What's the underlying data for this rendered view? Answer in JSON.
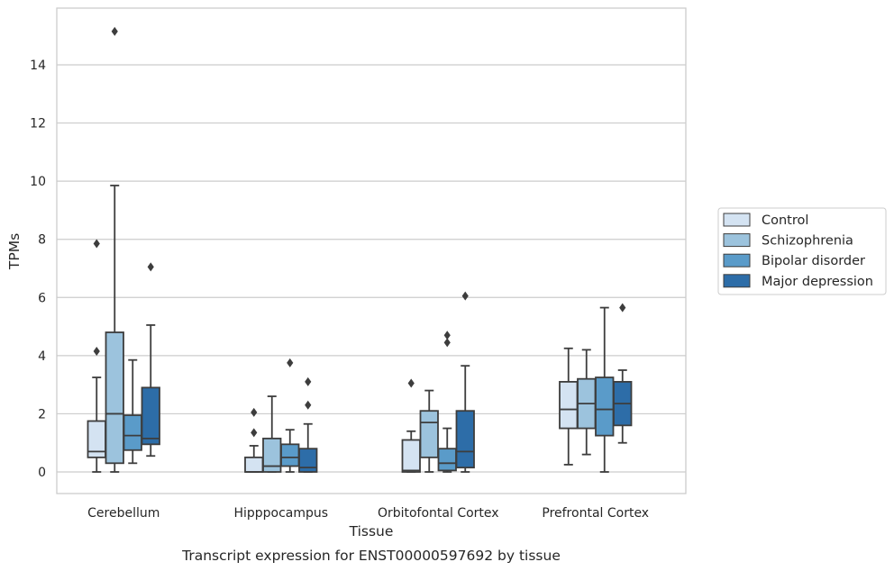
{
  "chart_data": {
    "type": "box",
    "title": "",
    "caption": "Transcript expression for ENST00000597692 by tissue",
    "xlabel": "Tissue",
    "ylabel": "TPMs",
    "ylim": [
      -0.75,
      15.7
    ],
    "yticks": [
      0,
      2,
      4,
      6,
      8,
      10,
      12,
      14
    ],
    "grid": "horizontal",
    "legend_position": "right",
    "categories": [
      "Cerebellum",
      "Hipppocampus",
      "Orbitofontal Cortex",
      "Prefrontal Cortex"
    ],
    "series": [
      {
        "name": "Control",
        "color": "#d4e3f2",
        "boxes": [
          {
            "whislo": 0.0,
            "q1": 0.5,
            "med": 0.7,
            "q3": 1.75,
            "whishi": 3.25,
            "fliers": [
              4.15,
              7.85
            ]
          },
          {
            "whislo": 0.0,
            "q1": 0.0,
            "med": 0.0,
            "q3": 0.5,
            "whishi": 0.9,
            "fliers": [
              1.35,
              2.05
            ]
          },
          {
            "whislo": 0.0,
            "q1": 0.0,
            "med": 0.05,
            "q3": 1.1,
            "whishi": 1.4,
            "fliers": [
              3.05
            ]
          },
          {
            "whislo": 0.25,
            "q1": 1.5,
            "med": 2.15,
            "q3": 3.1,
            "whishi": 4.25,
            "fliers": []
          }
        ]
      },
      {
        "name": "Schizophrenia",
        "color": "#9cc3dd",
        "boxes": [
          {
            "whislo": 0.0,
            "q1": 0.3,
            "med": 2.0,
            "q3": 4.8,
            "whishi": 9.85,
            "fliers": [
              15.15
            ]
          },
          {
            "whislo": 0.0,
            "q1": 0.0,
            "med": 0.2,
            "q3": 1.15,
            "whishi": 2.6,
            "fliers": []
          },
          {
            "whislo": 0.0,
            "q1": 0.5,
            "med": 1.7,
            "q3": 2.1,
            "whishi": 2.8,
            "fliers": []
          },
          {
            "whislo": 0.6,
            "q1": 1.5,
            "med": 2.35,
            "q3": 3.2,
            "whishi": 4.2,
            "fliers": []
          }
        ]
      },
      {
        "name": "Bipolar disorder",
        "color": "#5a9bc9",
        "boxes": [
          {
            "whislo": 0.3,
            "q1": 0.75,
            "med": 1.25,
            "q3": 1.95,
            "whishi": 3.85,
            "fliers": []
          },
          {
            "whislo": 0.0,
            "q1": 0.2,
            "med": 0.5,
            "q3": 0.95,
            "whishi": 1.45,
            "fliers": [
              3.75
            ]
          },
          {
            "whislo": 0.0,
            "q1": 0.05,
            "med": 0.3,
            "q3": 0.8,
            "whishi": 1.5,
            "fliers": [
              4.45,
              4.7
            ]
          },
          {
            "whislo": 0.0,
            "q1": 1.25,
            "med": 2.15,
            "q3": 3.25,
            "whishi": 5.65,
            "fliers": []
          }
        ]
      },
      {
        "name": "Major depression",
        "color": "#2d6da8",
        "boxes": [
          {
            "whislo": 0.55,
            "q1": 0.95,
            "med": 1.15,
            "q3": 2.9,
            "whishi": 5.05,
            "fliers": [
              7.05
            ]
          },
          {
            "whislo": 0.0,
            "q1": 0.0,
            "med": 0.15,
            "q3": 0.8,
            "whishi": 1.65,
            "fliers": [
              2.3,
              3.1
            ]
          },
          {
            "whislo": 0.0,
            "q1": 0.15,
            "med": 0.7,
            "q3": 2.1,
            "whishi": 3.65,
            "fliers": [
              6.05
            ]
          },
          {
            "whislo": 1.0,
            "q1": 1.6,
            "med": 2.35,
            "q3": 3.1,
            "whishi": 3.5,
            "fliers": [
              5.65
            ]
          }
        ]
      }
    ]
  }
}
